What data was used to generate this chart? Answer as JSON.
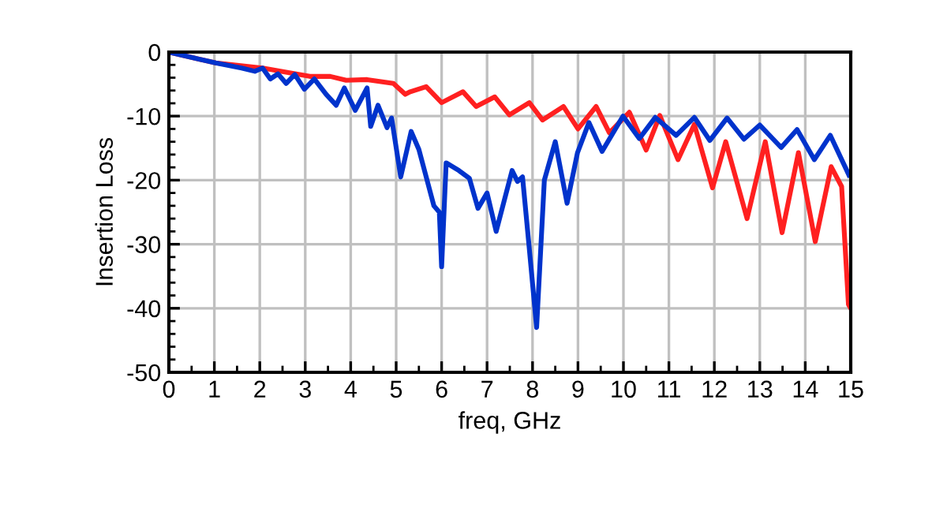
{
  "chart_data": {
    "type": "line",
    "xlabel": "freq, GHz",
    "ylabel": "Insertion Loss",
    "xlim": [
      0,
      15
    ],
    "xticks": [
      0,
      1,
      2,
      3,
      4,
      5,
      6,
      7,
      8,
      9,
      10,
      11,
      12,
      13,
      14,
      15
    ],
    "ylim": [
      -50,
      0
    ],
    "yticks": [
      -50,
      -40,
      -30,
      -20,
      -10,
      0
    ],
    "grid": true,
    "marker": "none",
    "line_style": "solid",
    "series": [
      {
        "color": "#ff2020",
        "x": [
          0,
          1.03,
          2.06,
          2.7,
          3.1,
          3.55,
          3.9,
          4.36,
          4.94,
          5.2,
          5.31,
          5.66,
          6.0,
          6.47,
          6.76,
          7.17,
          7.49,
          7.93,
          8.22,
          8.68,
          9.0,
          9.4,
          9.69,
          10.13,
          10.5,
          10.8,
          11.2,
          11.56,
          11.96,
          12.25,
          12.72,
          13.12,
          13.49,
          13.85,
          14.22,
          14.57,
          14.8,
          14.95,
          15
        ],
        "values": [
          0,
          -1.7,
          -2.5,
          -3.3,
          -3.8,
          -3.8,
          -4.4,
          -4.3,
          -4.9,
          -6.6,
          -6.2,
          -5.4,
          -7.9,
          -6.2,
          -8.5,
          -7,
          -9.8,
          -7.9,
          -10.6,
          -8.5,
          -12,
          -8.5,
          -12.6,
          -9.4,
          -15.3,
          -9.9,
          -16.8,
          -11.3,
          -21.2,
          -14,
          -26,
          -14,
          -28.2,
          -15.7,
          -29.6,
          -17.9,
          -21,
          -39.4,
          -40
        ]
      },
      {
        "color": "#0033cc",
        "x": [
          0,
          1.03,
          1.6,
          1.89,
          2.06,
          2.23,
          2.4,
          2.58,
          2.77,
          2.98,
          3.2,
          3.46,
          3.68,
          3.86,
          4.1,
          4.36,
          4.44,
          4.6,
          4.8,
          4.9,
          5.1,
          5.33,
          5.5,
          5.83,
          5.95,
          6.0,
          6.1,
          6.38,
          6.61,
          6.8,
          7.0,
          7.2,
          7.55,
          7.67,
          7.78,
          7.92,
          8.09,
          8.26,
          8.5,
          8.76,
          8.99,
          9.24,
          9.53,
          9.99,
          10.35,
          10.7,
          11.16,
          11.56,
          11.9,
          12.28,
          12.65,
          13.0,
          13.47,
          13.82,
          14.2,
          14.55,
          14.96
        ],
        "values": [
          0,
          -1.7,
          -2.5,
          -3,
          -2.5,
          -4.2,
          -3.4,
          -4.9,
          -3.5,
          -5.8,
          -4.2,
          -6.6,
          -8.3,
          -5.6,
          -9.1,
          -5.6,
          -11.6,
          -8.3,
          -11.8,
          -10.3,
          -19.5,
          -12.4,
          -15.2,
          -24,
          -25,
          -33.5,
          -17.3,
          -18.5,
          -19.7,
          -24.4,
          -22,
          -28,
          -18.5,
          -20.2,
          -19.5,
          -30,
          -43,
          -20,
          -14,
          -23.6,
          -15.7,
          -11,
          -15.5,
          -10,
          -13.5,
          -10.2,
          -13,
          -10.2,
          -13.8,
          -10.3,
          -13.6,
          -11.4,
          -14.9,
          -12.1,
          -16.8,
          -13,
          -19.2
        ]
      }
    ]
  }
}
